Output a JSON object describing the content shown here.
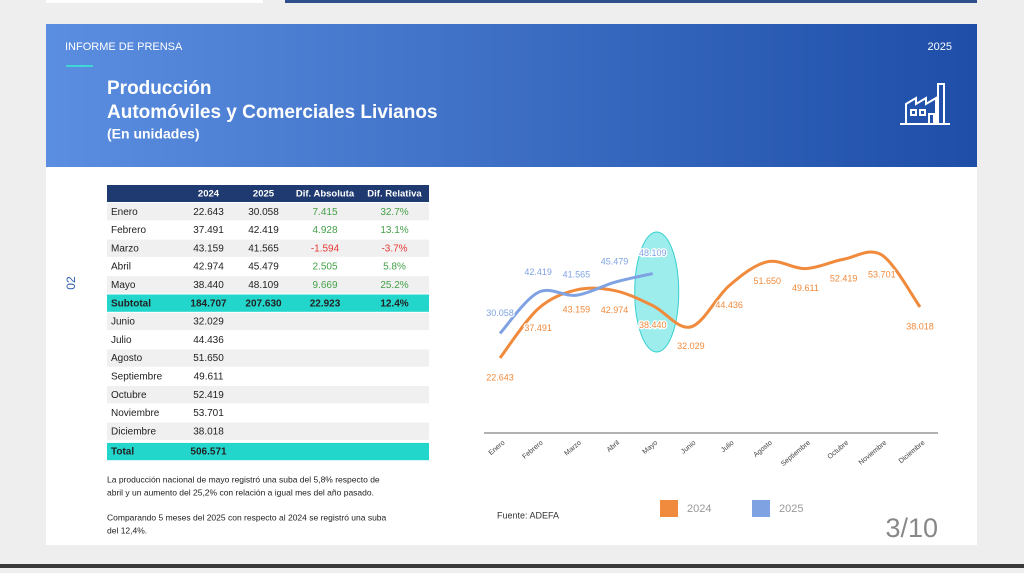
{
  "header": {
    "kicker": "INFORME DE PRENSA",
    "year": "2025",
    "title": "Producción",
    "subtitle": "Automóviles y Comerciales Livianos",
    "unit": "(En unidades)"
  },
  "section": "02",
  "table": {
    "columns": [
      "2024",
      "2025",
      "Dif. Absoluta",
      "Dif. Relativa"
    ],
    "rows": [
      [
        "Enero",
        "22.643",
        "30.058",
        "7.415",
        "32.7%"
      ],
      [
        "Febrero",
        "37.491",
        "42.419",
        "4.928",
        "13.1%"
      ],
      [
        "Marzo",
        "43.159",
        "41.565",
        "-1.594",
        "-3.7%"
      ],
      [
        "Abril",
        "42.974",
        "45.479",
        "2.505",
        "5.8%"
      ],
      [
        "Mayo",
        "38.440",
        "48.109",
        "9.669",
        "25.2%"
      ],
      [
        "Subtotal",
        "184.707",
        "207.630",
        "22.923",
        "12.4%"
      ],
      [
        "Junio",
        "32.029"
      ],
      [
        "Julio",
        "44.436"
      ],
      [
        "Agosto",
        "51.650"
      ],
      [
        "Septiembre",
        "49.611"
      ],
      [
        "Octubre",
        "52.419"
      ],
      [
        "Noviembre",
        "53.701"
      ],
      [
        "Diciembre",
        "38.018"
      ],
      [
        "Total",
        "506.571"
      ]
    ]
  },
  "notes": [
    "La producción nacional de mayo registró una suba del 5,8% respecto de",
    "abril y un aumento del 25,2% con relación a igual mes del año pasado.",
    "Comparando 5 meses del 2025 con respecto al 2024 se registró una suba",
    "del 12,4%."
  ],
  "chart_data": {
    "type": "line",
    "categories": [
      "Enero",
      "Febrero",
      "Marzo",
      "Abril",
      "Mayo",
      "Junio",
      "Julio",
      "Agosto",
      "Septiembre",
      "Octubre",
      "Noviembre",
      "Diciembre"
    ],
    "series": [
      {
        "name": "2024",
        "color": "#f08a3c",
        "values": [
          22643,
          37491,
          43159,
          42974,
          38440,
          32029,
          44436,
          51650,
          49611,
          52419,
          53701,
          38018
        ],
        "value_labels": [
          "22.643",
          "37.491",
          "43.159",
          "42.974",
          "38.440",
          "32.029",
          "44.436",
          "51.650",
          "49.611",
          "52.419",
          "53.701",
          "38.018"
        ]
      },
      {
        "name": "2025",
        "color": "#7fa2e3",
        "values": [
          30058,
          42419,
          41565,
          45479,
          48109,
          null,
          null,
          null,
          null,
          null,
          null,
          null
        ],
        "value_labels": [
          "30.058",
          "42.419",
          "41.565",
          "45.479",
          "48.109",
          null,
          null,
          null,
          null,
          null,
          null,
          null
        ]
      }
    ],
    "source": "Fuente: ADEFA"
  },
  "page": "3/10"
}
